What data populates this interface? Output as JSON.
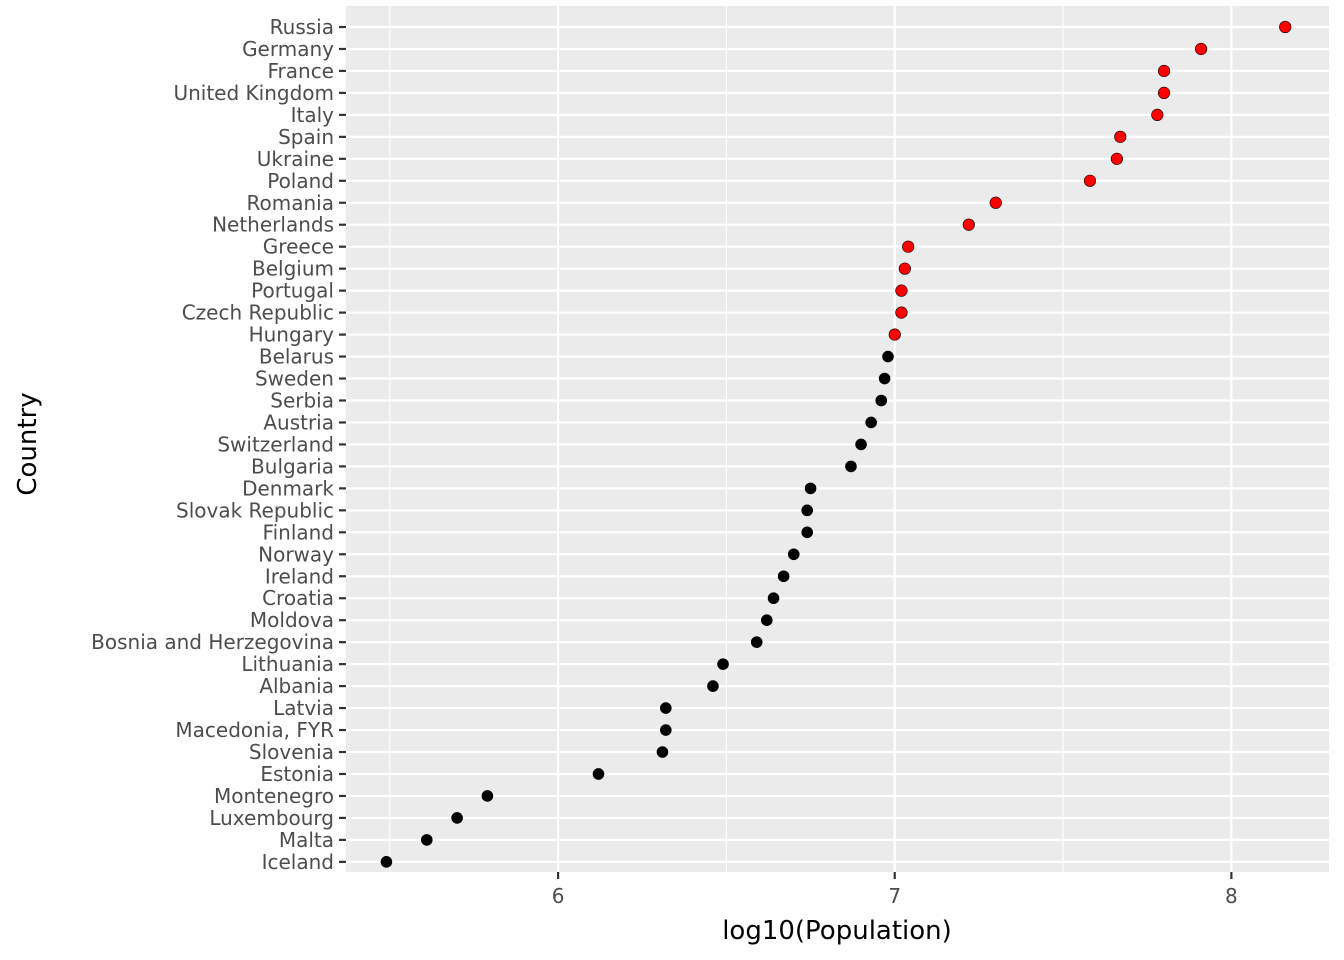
{
  "chart_data": {
    "type": "scatter",
    "xlabel": "log10(Population)",
    "ylabel": "Country",
    "xlim": [
      5.37,
      8.29
    ],
    "x_ticks": [
      6,
      7,
      8
    ],
    "x_tick_labels": [
      "6",
      "7",
      "8"
    ],
    "grid": true,
    "panel_background": "#ebebeb",
    "grid_color": "#ffffff",
    "highlight_color": "#ff0000",
    "base_color": "#000000",
    "categories": [
      "Russia",
      "Germany",
      "France",
      "United Kingdom",
      "Italy",
      "Spain",
      "Ukraine",
      "Poland",
      "Romania",
      "Netherlands",
      "Greece",
      "Belgium",
      "Portugal",
      "Czech Republic",
      "Hungary",
      "Belarus",
      "Sweden",
      "Serbia",
      "Austria",
      "Switzerland",
      "Bulgaria",
      "Denmark",
      "Slovak Republic",
      "Finland",
      "Norway",
      "Ireland",
      "Croatia",
      "Moldova",
      "Bosnia and Herzegovina",
      "Lithuania",
      "Albania",
      "Latvia",
      "Macedonia, FYR",
      "Slovenia",
      "Estonia",
      "Montenegro",
      "Luxembourg",
      "Malta",
      "Iceland"
    ],
    "values": [
      8.16,
      7.91,
      7.8,
      7.8,
      7.78,
      7.67,
      7.66,
      7.58,
      7.3,
      7.22,
      7.04,
      7.03,
      7.02,
      7.02,
      7.0,
      6.98,
      6.97,
      6.96,
      6.93,
      6.9,
      6.87,
      6.75,
      6.74,
      6.74,
      6.7,
      6.67,
      6.64,
      6.62,
      6.59,
      6.49,
      6.46,
      6.32,
      6.32,
      6.31,
      6.12,
      5.79,
      5.7,
      5.61,
      5.49
    ],
    "highlighted": [
      true,
      true,
      true,
      true,
      true,
      true,
      true,
      true,
      true,
      true,
      true,
      true,
      true,
      true,
      true,
      false,
      false,
      false,
      false,
      false,
      false,
      false,
      false,
      false,
      false,
      false,
      false,
      false,
      false,
      false,
      false,
      false,
      false,
      false,
      false,
      false,
      false,
      false,
      false
    ]
  }
}
